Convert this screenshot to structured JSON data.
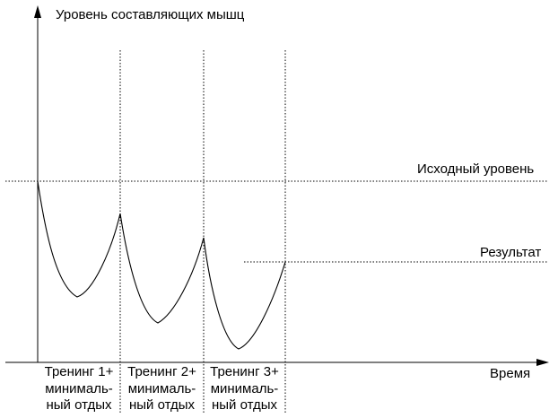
{
  "y_axis_label": "Уровень составляющих мышц",
  "x_axis_label": "Время",
  "baseline_label": "Исходный уровень",
  "result_label": "Результат",
  "phases": [
    {
      "line1": "Тренинг 1+",
      "line2": "минималь-",
      "line3": "ный отдых"
    },
    {
      "line1": "Тренинг 2+",
      "line2": "минималь-",
      "line3": "ный отдых"
    },
    {
      "line1": "Тренинг 3+",
      "line2": "минималь-",
      "line3": "ный отдых"
    }
  ],
  "colors": {
    "line": "#000000",
    "background": "#ffffff"
  }
}
